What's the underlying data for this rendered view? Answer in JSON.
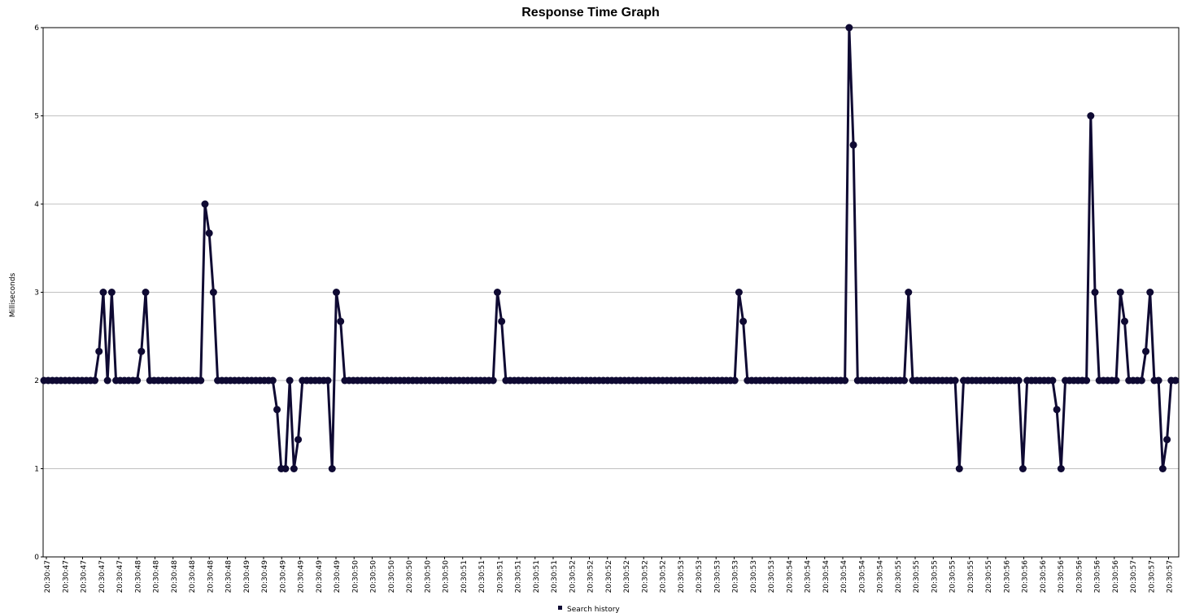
{
  "chart_data": {
    "type": "line",
    "title": "Response Time Graph",
    "xlabel": "",
    "ylabel": "Milliseconds",
    "ylim": [
      0,
      6
    ],
    "y_ticks": [
      0,
      1,
      2,
      3,
      4,
      5,
      6
    ],
    "grid": "horizontal",
    "legend_position": "bottom",
    "series": [
      {
        "name": "Search history",
        "color": "#0f0a33",
        "values": [
          2,
          2,
          2,
          2,
          2,
          2,
          2,
          2,
          2,
          2,
          2,
          2,
          2,
          2.33,
          3,
          2,
          3,
          2,
          2,
          2,
          2,
          2,
          2,
          2.33,
          3,
          2,
          2,
          2,
          2,
          2,
          2,
          2,
          2,
          2,
          2,
          2,
          2,
          2,
          4,
          3.67,
          3,
          2,
          2,
          2,
          2,
          2,
          2,
          2,
          2,
          2,
          2,
          2,
          2,
          2,
          2,
          1.67,
          1,
          1,
          2,
          1,
          1.33,
          2,
          2,
          2,
          2,
          2,
          2,
          2,
          1,
          3,
          2.67,
          2,
          2,
          2,
          2,
          2,
          2,
          2,
          2,
          2,
          2,
          2,
          2,
          2,
          2,
          2,
          2,
          2,
          2,
          2,
          2,
          2,
          2,
          2,
          2,
          2,
          2,
          2,
          2,
          2,
          2,
          2,
          2,
          2,
          2,
          2,
          2,
          3,
          2.67,
          2,
          2,
          2,
          2,
          2,
          2,
          2,
          2,
          2,
          2,
          2,
          2,
          2,
          2,
          2,
          2,
          2,
          2,
          2,
          2,
          2,
          2,
          2,
          2,
          2,
          2,
          2,
          2,
          2,
          2,
          2,
          2,
          2,
          2,
          2,
          2,
          2,
          2,
          2,
          2,
          2,
          2,
          2,
          2,
          2,
          2,
          2,
          2,
          2,
          2,
          2,
          2,
          2,
          2,
          2,
          3,
          2.67,
          2,
          2,
          2,
          2,
          2,
          2,
          2,
          2,
          2,
          2,
          2,
          2,
          2,
          2,
          2,
          2,
          2,
          2,
          2,
          2,
          2,
          2,
          2,
          2,
          6,
          4.67,
          2,
          2,
          2,
          2,
          2,
          2,
          2,
          2,
          2,
          2,
          2,
          2,
          3,
          2,
          2,
          2,
          2,
          2,
          2,
          2,
          2,
          2,
          2,
          2,
          1,
          2,
          2,
          2,
          2,
          2,
          2,
          2,
          2,
          2,
          2,
          2,
          2,
          2,
          2,
          1,
          2,
          2,
          2,
          2,
          2,
          2,
          2,
          1.67,
          1,
          2,
          2,
          2,
          2,
          2,
          2,
          5,
          3,
          2,
          2,
          2,
          2,
          2,
          3,
          2.67,
          2,
          2,
          2,
          2,
          2.33,
          3,
          2,
          2,
          1,
          1.33,
          2,
          2
        ]
      }
    ],
    "x_tick_labels": [
      "20:30:47",
      "20:30:47",
      "20:30:47",
      "20:30:47",
      "20:30:47",
      "20:30:48",
      "20:30:48",
      "20:30:48",
      "20:30:48",
      "20:30:48",
      "20:30:48",
      "20:30:49",
      "20:30:49",
      "20:30:49",
      "20:30:49",
      "20:30:49",
      "20:30:49",
      "20:30:50",
      "20:30:50",
      "20:30:50",
      "20:30:50",
      "20:30:50",
      "20:30:50",
      "20:30:51",
      "20:30:51",
      "20:30:51",
      "20:30:51",
      "20:30:51",
      "20:30:51",
      "20:30:52",
      "20:30:52",
      "20:30:52",
      "20:30:52",
      "20:30:52",
      "20:30:52",
      "20:30:53",
      "20:30:53",
      "20:30:53",
      "20:30:53",
      "20:30:53",
      "20:30:53",
      "20:30:54",
      "20:30:54",
      "20:30:54",
      "20:30:54",
      "20:30:54",
      "20:30:54",
      "20:30:55",
      "20:30:55",
      "20:30:55",
      "20:30:55",
      "20:30:55",
      "20:30:55",
      "20:30:56",
      "20:30:56",
      "20:30:56",
      "20:30:56",
      "20:30:56",
      "20:30:56",
      "20:30:56",
      "20:30:57",
      "20:30:57",
      "20:30:57",
      "20:30:57"
    ]
  }
}
